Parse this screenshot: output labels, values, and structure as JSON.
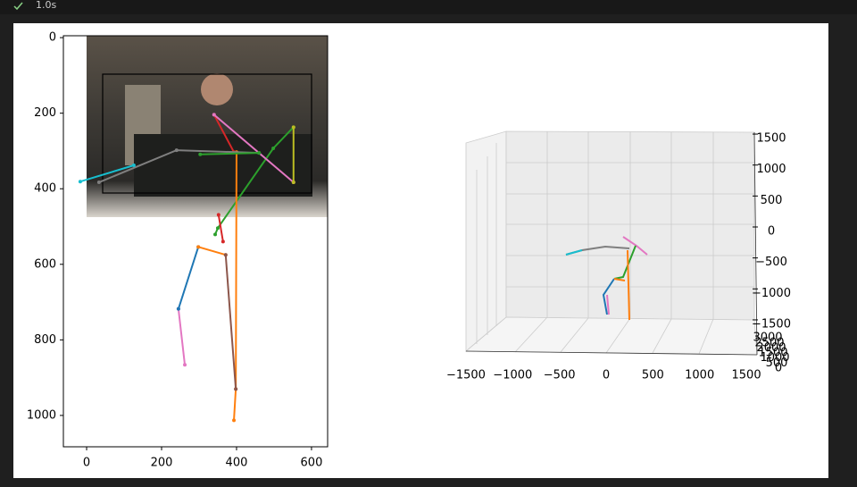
{
  "toolbar": {
    "status": "1.0s"
  },
  "chart_data": [
    {
      "type": "line",
      "xlim": [
        -62,
        643
      ],
      "ylim": [
        1083,
        -5
      ],
      "xticks": [
        0,
        200,
        400,
        600
      ],
      "yticks": [
        0,
        200,
        400,
        600,
        800,
        1000
      ],
      "series": [
        {
          "color": "#2ca02c",
          "x": [
            552,
            498,
            350,
            343
          ],
          "values": [
            237,
            293,
            504,
            521
          ]
        },
        {
          "color": "#ff7f0e",
          "x": [
            400,
            398,
            393
          ],
          "values": [
            303,
            930,
            1013
          ]
        },
        {
          "color": "#d62728",
          "x": [
            340,
            393
          ],
          "values": [
            204,
            303
          ]
        },
        {
          "color": "#d62728",
          "x": [
            352,
            364
          ],
          "values": [
            469,
            540
          ]
        },
        {
          "color": "#e377c2",
          "x": [
            340,
            552
          ],
          "values": [
            204,
            383
          ]
        },
        {
          "color": "#e377c2",
          "x": [
            245,
            262
          ],
          "values": [
            718,
            866
          ]
        },
        {
          "color": "#7f7f7f",
          "x": [
            33,
            240,
            460
          ],
          "values": [
            383,
            298,
            305
          ]
        },
        {
          "color": "#17becf",
          "x": [
            -17,
            126
          ],
          "values": [
            381,
            338
          ]
        },
        {
          "color": "#1f77b4",
          "x": [
            298,
            245
          ],
          "values": [
            554,
            718
          ]
        },
        {
          "color": "#ff7f0e",
          "x": [
            298,
            371
          ],
          "values": [
            554,
            575
          ]
        },
        {
          "color": "#8c564b",
          "x": [
            371,
            398
          ],
          "values": [
            575,
            930
          ]
        },
        {
          "color": "#bcbd22",
          "x": [
            552,
            552
          ],
          "values": [
            237,
            383
          ]
        },
        {
          "color": "#2ca02c",
          "x": [
            303,
            460
          ],
          "values": [
            309,
            305
          ]
        }
      ]
    },
    {
      "type": "3d",
      "xticks": [
        {
          "value": -1500,
          "label": "−1500"
        },
        {
          "value": -1000,
          "label": "−1000"
        },
        {
          "value": -500,
          "label": "−500"
        },
        0,
        500,
        1000,
        1500
      ],
      "zticks": [
        1500,
        1000,
        500,
        0,
        {
          "value": -500,
          "label": "−500"
        },
        {
          "value": -1000,
          "label": "−1000"
        },
        {
          "value": -1500,
          "label": "−1500"
        }
      ],
      "yticks": [
        3000,
        2500,
        2000,
        1500,
        1000,
        500,
        0
      ]
    }
  ]
}
